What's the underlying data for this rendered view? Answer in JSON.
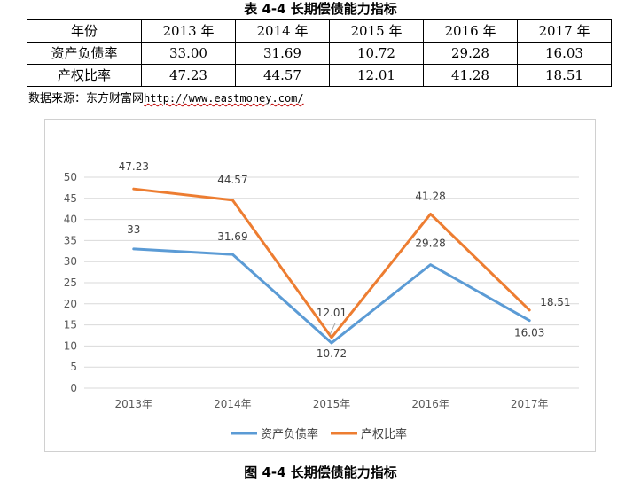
{
  "table": {
    "title": "表 4-4  长期偿债能力指标",
    "header": [
      "年份",
      "2013 年",
      "2014 年",
      "2015 年",
      "2016 年",
      "2017 年"
    ],
    "rows": [
      [
        "资产负债率",
        "33.00",
        "31.69",
        "10.72",
        "29.28",
        "16.03"
      ],
      [
        "产权比率",
        "47.23",
        "44.57",
        "12.01",
        "41.28",
        "18.51"
      ]
    ]
  },
  "source": {
    "label": "数据来源：东方财富网",
    "url": "http://www.eastmoney.com/"
  },
  "figure_caption": "图 4-4  长期偿债能力指标",
  "chart_data": {
    "type": "line",
    "categories": [
      "2013年",
      "2014年",
      "2015年",
      "2016年",
      "2017年"
    ],
    "series": [
      {
        "name": "资产负债率",
        "values": [
          33,
          31.69,
          10.72,
          29.28,
          16.03
        ],
        "labels": [
          "33",
          "31.69",
          "10.72",
          "29.28",
          "16.03"
        ],
        "color": "#5b9bd5"
      },
      {
        "name": "产权比率",
        "values": [
          47.23,
          44.57,
          12.01,
          41.28,
          18.51
        ],
        "labels": [
          "47.23",
          "44.57",
          "12.01",
          "41.28",
          "18.51"
        ],
        "color": "#ed7d31"
      }
    ],
    "y_ticks": [
      "0",
      "5",
      "10",
      "15",
      "20",
      "25",
      "30",
      "35",
      "40",
      "45",
      "50"
    ],
    "ylim": [
      0,
      50
    ],
    "grid": true,
    "legend_position": "bottom"
  }
}
